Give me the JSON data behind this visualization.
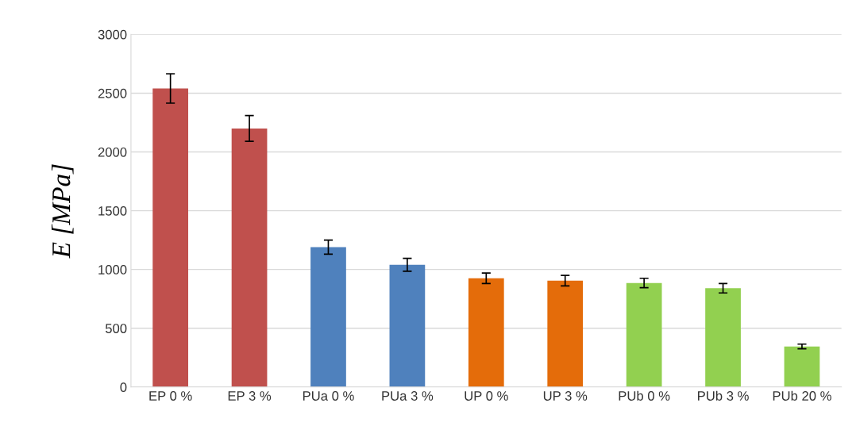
{
  "chart_data": {
    "type": "bar",
    "ylabel": "E [MPa]",
    "categories": [
      "EP 0 %",
      "EP 3 %",
      "PUa 0 %",
      "PUa 3 %",
      "UP 0 %",
      "UP 3 %",
      "PUb 0 %",
      "PUb 3 %",
      "PUb 20 %"
    ],
    "values": [
      2540,
      2200,
      1190,
      1040,
      925,
      905,
      885,
      840,
      345
    ],
    "errors": [
      125,
      110,
      60,
      55,
      45,
      45,
      40,
      40,
      20
    ],
    "colors": [
      "#c0504d",
      "#c0504d",
      "#4f81bd",
      "#4f81bd",
      "#e46c0a",
      "#e46c0a",
      "#92d050",
      "#92d050",
      "#92d050"
    ],
    "ylim": [
      0,
      3000
    ],
    "yticks": [
      0,
      500,
      1000,
      1500,
      2000,
      2500,
      3000
    ],
    "grid": "y"
  }
}
